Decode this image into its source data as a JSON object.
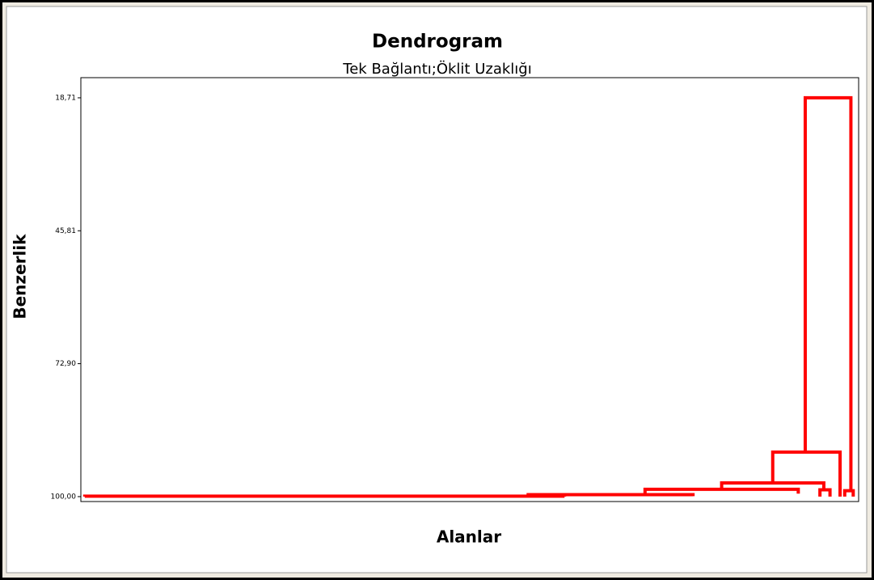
{
  "chart_data": {
    "type": "dendrogram",
    "title": "Dendrogram",
    "subtitle": "Tek Bağlantı;Öklit Uzaklığı",
    "ylabel": "Benzerlik",
    "xlabel": "Alanlar",
    "color": "#ff0000",
    "ylim": [
      101,
      14.6
    ],
    "yticks": [
      {
        "value": 18.71,
        "label": "18,71"
      },
      {
        "value": 45.81,
        "label": "45,81"
      },
      {
        "value": 72.9,
        "label": "72,90"
      },
      {
        "value": 100,
        "label": "100,00"
      }
    ],
    "xlim": [
      -0.5,
      100
    ],
    "links": [
      {
        "x": [
          0,
          62
        ],
        "height": 99.9,
        "children": [
          100,
          100
        ]
      },
      {
        "x": [
          57.3,
          78.6
        ],
        "height": 99.6,
        "children": [
          99.9,
          99.9
        ]
      },
      {
        "x": [
          72.4,
          92.2
        ],
        "height": 98.5,
        "children": [
          99.6,
          99.4
        ]
      },
      {
        "x": [
          95.0,
          96.3
        ],
        "height": 98.6,
        "children": [
          100,
          100
        ]
      },
      {
        "x": [
          82.3,
          95.5
        ],
        "height": 97.2,
        "children": [
          98.5,
          98.6
        ]
      },
      {
        "x": [
          98.2,
          99.3
        ],
        "height": 98.8,
        "children": [
          100,
          100
        ]
      },
      {
        "x": [
          88.9,
          97.6
        ],
        "height": 90.93,
        "children": [
          97.2,
          100
        ]
      },
      {
        "x": [
          93.1,
          99.0
        ],
        "height": 18.71,
        "children": [
          90.93,
          98.8
        ]
      }
    ]
  }
}
